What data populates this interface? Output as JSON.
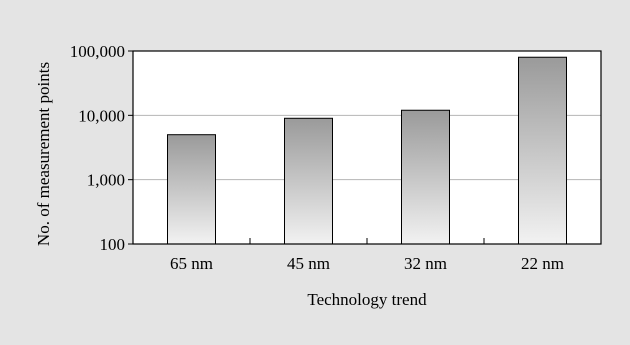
{
  "chart_data": {
    "type": "bar",
    "title": "",
    "xlabel": "Technology trend",
    "ylabel": "No. of measurement points",
    "categories": [
      "65 nm",
      "45 nm",
      "32 nm",
      "22 nm"
    ],
    "values": [
      5000,
      9000,
      12000,
      80000
    ],
    "y_scale": "log",
    "ylim": [
      100,
      100000
    ],
    "y_ticks": [
      100,
      1000,
      10000,
      100000
    ],
    "y_tick_labels": [
      "100",
      "1,000",
      "10,000",
      "100,000"
    ],
    "grid": "horizontal",
    "legend": "none",
    "colors": {
      "background": "#e4e4e4",
      "plot_area": "#ffffff",
      "bar_gradient_top": "#9a9a9a",
      "bar_gradient_bottom": "#f2f2f2",
      "gridline": "#b4b4b4",
      "axis": "#000000"
    }
  }
}
